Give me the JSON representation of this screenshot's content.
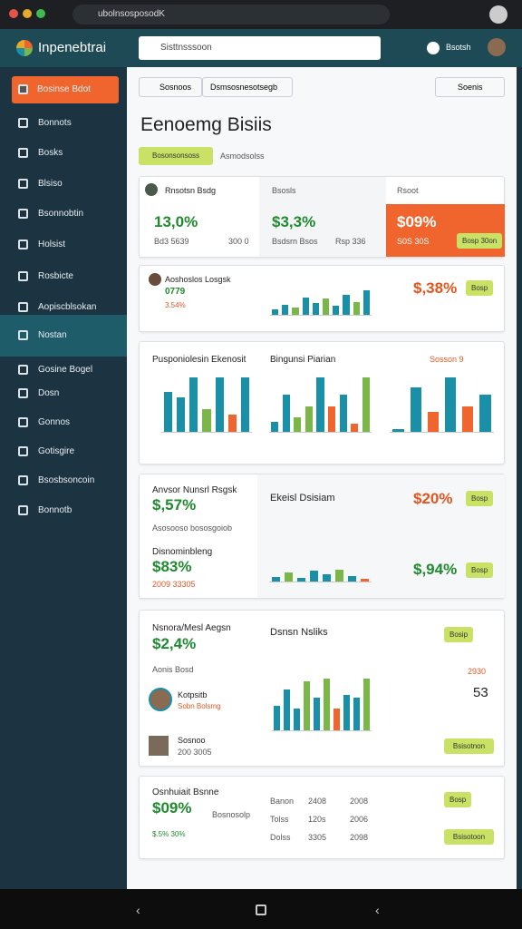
{
  "browser": {
    "url": "ubolnsosposodK"
  },
  "header": {
    "logo": "Inpenebtrai",
    "search": "Sisttnsssoon",
    "user": "Bsotsh"
  },
  "sidebar": {
    "items": [
      "Bosinse Bdot",
      "Bonnots",
      "Bosks",
      "Blsiso",
      "Bsonnobtin",
      "Holsist",
      "Rosbicte",
      "Aopiscblsokan",
      "Nostan",
      "Gosine Bogel",
      "Dosn",
      "Gonnos",
      "Gotisgire",
      "Bsosbsoncoin",
      "Bonnotb"
    ]
  },
  "toolbar": {
    "tabs": [
      "Sosnoos",
      "Dsmsosnesotsegb"
    ],
    "button": "Soenis"
  },
  "title": "Eenoemg Bisiis",
  "filters": [
    "Bosonsonsoss",
    "Asmodsolss"
  ],
  "kpis": [
    {
      "label": "Rnsotsn Bsdg",
      "value": "13,0%",
      "subs": [
        "Bd3 5639",
        "300 0"
      ]
    },
    {
      "label": "Bsosls",
      "value": "$3,3%",
      "subs": [
        "Bsdsrn Bsos",
        "Rsp 336"
      ]
    },
    {
      "label": "Rsoot",
      "value": "$09%",
      "subs": [
        "S0S 30S",
        "Bosp 30on"
      ]
    }
  ],
  "card2": {
    "title": "Aoshoslos Losgsk",
    "value": "0779",
    "sub": "3.54%",
    "metric": "$,38%",
    "button": "Bosp"
  },
  "card3": {
    "titles": [
      "Pusponiolesin Ekenosit",
      "Bingunsi Piarian",
      "Sosson 9"
    ]
  },
  "card4": {
    "title": "Anvsor Nunsrl Rsgsk",
    "value": "$,57%",
    "sub": "Asosooso bososgoiob",
    "title2": "Disnominbleng",
    "value2": "$83%",
    "sub2": "2009 33305",
    "chart_title": "Ekeisl Dsisiam",
    "metric": "$20%",
    "metric2": "$,94%",
    "button": "Bosp"
  },
  "card5": {
    "title": "Nsnora/Mesl Aegsn",
    "value": "$2,4%",
    "sub": "Aonis Bosd",
    "person": "Kotpsitb",
    "person_sub": "Sobn Bolsmg",
    "chart_title": "Dsnsn Nsliks",
    "button": "Bosip",
    "side": "2930",
    "big": "53",
    "foot": "Sosnoo",
    "foot_sub": "200 3005",
    "button2": "Bsisotnon"
  },
  "card6": {
    "title": "Osnhuiait Bsnne",
    "value": "$09%",
    "sub": "Bosnosolp",
    "sub2": "$.5% 30%",
    "rows": [
      [
        "Banon",
        "2408",
        "2008"
      ],
      [
        "Tolss",
        "120s",
        "2006"
      ],
      [
        "Dolss",
        "3305",
        "2098"
      ]
    ],
    "button": "Bosp",
    "button2": "Bsisotoon"
  },
  "charts": [
    {
      "ylim": [
        0,
        100
      ],
      "values": [
        20,
        35,
        25,
        60,
        40,
        55,
        30,
        70,
        45,
        85
      ],
      "colors": [
        "#1a8fa8",
        "#1a8fa8",
        "#7ab648",
        "#1a8fa8",
        "#1a8fa8",
        "#7ab648",
        "#1a8fa8",
        "#1a8fa8",
        "#7ab648",
        "#1a8fa8"
      ]
    },
    {
      "ylim": [
        0,
        100
      ],
      "values": [
        70,
        60,
        95,
        40,
        95,
        30,
        95
      ],
      "colors": [
        "#1a8fa8",
        "#1a8fa8",
        "#1a8fa8",
        "#7ab648",
        "#1a8fa8",
        "#f0652d",
        "#1a8fa8"
      ]
    },
    {
      "ylim": [
        0,
        100
      ],
      "values": [
        18,
        65,
        25,
        45,
        95,
        45,
        65,
        15,
        95
      ],
      "colors": [
        "#1a8fa8",
        "#1a8fa8",
        "#7ab648",
        "#7ab648",
        "#1a8fa8",
        "#f0652d",
        "#1a8fa8",
        "#f0652d",
        "#7ab648"
      ]
    },
    {
      "ylim": [
        0,
        100
      ],
      "values": [
        5,
        78,
        35,
        95,
        45,
        65
      ],
      "colors": [
        "#1a8fa8",
        "#1a8fa8",
        "#f0652d",
        "#1a8fa8",
        "#f0652d",
        "#1a8fa8"
      ]
    },
    {
      "ylim": [
        0,
        100
      ],
      "values": [
        20,
        40,
        15,
        45,
        30,
        50,
        25,
        10
      ],
      "colors": [
        "#1a8fa8",
        "#7ab648",
        "#1a8fa8",
        "#1a8fa8",
        "#1a8fa8",
        "#7ab648",
        "#1a8fa8",
        "#f0652d"
      ]
    },
    {
      "ylim": [
        0,
        100
      ],
      "values": [
        45,
        75,
        40,
        90,
        60,
        95,
        40,
        65,
        60,
        95
      ],
      "colors": [
        "#1a8fa8",
        "#1a8fa8",
        "#1a8fa8",
        "#7ab648",
        "#1a8fa8",
        "#7ab648",
        "#f0652d",
        "#1a8fa8",
        "#1a8fa8",
        "#7ab648"
      ]
    }
  ]
}
